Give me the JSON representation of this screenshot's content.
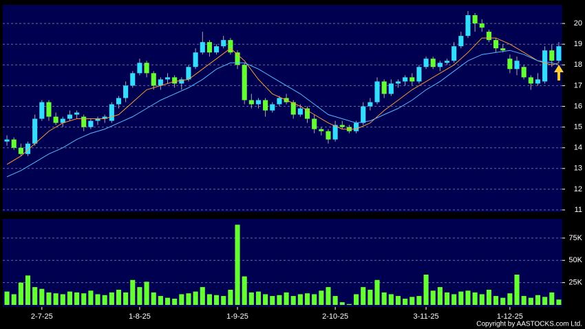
{
  "chart_data": [
    {
      "type": "candlestick",
      "up_color": "#33ddff",
      "down_color": "#66ff33",
      "wick_color": "#aaaaaa",
      "ylim": [
        10.9,
        20.9
      ],
      "yticks": [
        11,
        12,
        13,
        14,
        15,
        16,
        17,
        18,
        19,
        20
      ],
      "grid": true,
      "ohlc": [
        [
          14.3,
          14.6,
          14.1,
          14.4
        ],
        [
          14.4,
          14.5,
          13.9,
          14.0
        ],
        [
          14.0,
          14.2,
          13.6,
          13.7
        ],
        [
          13.7,
          14.3,
          13.6,
          14.2
        ],
        [
          14.2,
          15.6,
          14.1,
          15.4
        ],
        [
          15.4,
          16.3,
          15.3,
          16.2
        ],
        [
          16.2,
          16.3,
          15.3,
          15.5
        ],
        [
          15.5,
          15.7,
          15.1,
          15.2
        ],
        [
          15.2,
          15.5,
          15.0,
          15.4
        ],
        [
          15.4,
          15.8,
          15.3,
          15.6
        ],
        [
          15.6,
          15.8,
          15.4,
          15.7
        ],
        [
          15.5,
          15.6,
          14.8,
          15.0
        ],
        [
          15.0,
          15.4,
          14.9,
          15.3
        ],
        [
          15.3,
          15.5,
          15.1,
          15.4
        ],
        [
          15.4,
          15.6,
          15.2,
          15.5
        ],
        [
          15.3,
          16.2,
          15.2,
          16.1
        ],
        [
          16.1,
          16.5,
          15.9,
          16.4
        ],
        [
          16.4,
          17.2,
          16.2,
          17.0
        ],
        [
          17.0,
          17.7,
          16.9,
          17.6
        ],
        [
          17.6,
          18.3,
          17.5,
          18.1
        ],
        [
          18.1,
          18.2,
          17.4,
          17.6
        ],
        [
          17.6,
          17.7,
          16.8,
          17.0
        ],
        [
          17.0,
          17.4,
          16.8,
          17.3
        ],
        [
          17.3,
          17.6,
          17.1,
          17.4
        ],
        [
          17.4,
          17.5,
          16.9,
          17.1
        ],
        [
          17.1,
          17.4,
          16.8,
          17.3
        ],
        [
          17.3,
          18.0,
          17.2,
          17.9
        ],
        [
          17.9,
          18.8,
          17.8,
          18.6
        ],
        [
          18.6,
          19.6,
          18.5,
          19.1
        ],
        [
          19.1,
          19.2,
          18.4,
          18.6
        ],
        [
          18.6,
          19.0,
          18.5,
          18.9
        ],
        [
          18.9,
          19.4,
          18.8,
          19.2
        ],
        [
          19.2,
          19.3,
          18.5,
          18.6
        ],
        [
          18.6,
          18.7,
          17.8,
          18.0
        ],
        [
          18.0,
          18.1,
          16.1,
          16.3
        ],
        [
          16.3,
          16.6,
          15.9,
          16.1
        ],
        [
          16.1,
          16.4,
          15.9,
          16.3
        ],
        [
          16.3,
          16.4,
          15.5,
          15.8
        ],
        [
          15.8,
          16.2,
          15.7,
          16.1
        ],
        [
          16.1,
          16.5,
          16.0,
          16.4
        ],
        [
          16.4,
          16.6,
          16.1,
          16.2
        ],
        [
          16.2,
          16.3,
          15.4,
          15.6
        ],
        [
          15.6,
          16.1,
          15.5,
          15.9
        ],
        [
          15.9,
          16.0,
          15.2,
          15.4
        ],
        [
          15.4,
          15.6,
          14.7,
          14.9
        ],
        [
          14.9,
          15.0,
          14.6,
          14.8
        ],
        [
          14.8,
          14.9,
          14.2,
          14.4
        ],
        [
          14.4,
          15.3,
          14.3,
          15.1
        ],
        [
          15.1,
          15.3,
          14.9,
          15.0
        ],
        [
          15.0,
          15.1,
          14.7,
          14.8
        ],
        [
          14.8,
          15.3,
          14.7,
          15.2
        ],
        [
          15.2,
          16.2,
          15.1,
          16.0
        ],
        [
          16.0,
          16.4,
          15.8,
          16.2
        ],
        [
          16.2,
          17.4,
          16.1,
          17.2
        ],
        [
          17.2,
          17.3,
          16.4,
          16.6
        ],
        [
          16.6,
          17.3,
          16.5,
          17.1
        ],
        [
          17.1,
          17.3,
          16.9,
          17.2
        ],
        [
          17.2,
          17.5,
          17.0,
          17.4
        ],
        [
          17.4,
          17.6,
          17.0,
          17.2
        ],
        [
          17.2,
          18.0,
          17.1,
          17.9
        ],
        [
          17.9,
          18.4,
          17.8,
          18.3
        ],
        [
          18.3,
          18.4,
          17.8,
          17.9
        ],
        [
          17.9,
          18.2,
          17.7,
          18.1
        ],
        [
          18.1,
          18.3,
          18.0,
          18.2
        ],
        [
          18.2,
          19.1,
          18.1,
          18.9
        ],
        [
          18.9,
          19.6,
          18.8,
          19.4
        ],
        [
          19.4,
          20.6,
          19.3,
          20.4
        ],
        [
          20.4,
          20.5,
          19.6,
          20.0
        ],
        [
          20.0,
          20.2,
          19.6,
          19.8
        ],
        [
          19.6,
          19.7,
          19.1,
          19.2
        ],
        [
          19.2,
          19.3,
          18.6,
          18.8
        ],
        [
          18.8,
          19.0,
          18.6,
          18.7
        ],
        [
          18.3,
          18.5,
          17.6,
          17.8
        ],
        [
          17.8,
          18.4,
          17.5,
          18.2
        ],
        [
          17.9,
          18.0,
          17.3,
          17.4
        ],
        [
          17.4,
          17.5,
          16.8,
          17.1
        ],
        [
          17.1,
          17.6,
          17.0,
          17.3
        ],
        [
          17.2,
          18.9,
          17.1,
          18.7
        ],
        [
          18.7,
          19.0,
          17.9,
          18.2
        ],
        [
          18.2,
          19.1,
          18.1,
          18.9
        ]
      ],
      "lines": [
        {
          "color": "#ff9933",
          "x": [
            0,
            2,
            4,
            6,
            8,
            10,
            12,
            14,
            16,
            18,
            20,
            22,
            24,
            26,
            28,
            30,
            32,
            34,
            36,
            38,
            40,
            42,
            44,
            46,
            48,
            50,
            52,
            54,
            56,
            58,
            60,
            62,
            64,
            66,
            68,
            70,
            72,
            74,
            76,
            78,
            79
          ],
          "values": [
            13.2,
            13.6,
            14.2,
            14.8,
            15.2,
            15.4,
            15.4,
            15.4,
            15.6,
            16.2,
            16.8,
            17.0,
            17.2,
            17.3,
            17.8,
            18.3,
            18.8,
            18.2,
            17.3,
            16.6,
            16.3,
            16.0,
            15.6,
            15.2,
            14.9,
            14.9,
            15.2,
            15.8,
            16.3,
            16.8,
            17.2,
            17.6,
            18.0,
            18.6,
            19.3,
            19.3,
            19.0,
            18.6,
            18.2,
            18.0,
            18.1
          ]
        },
        {
          "color": "#55bbff",
          "x": [
            0,
            2,
            4,
            6,
            8,
            10,
            12,
            14,
            16,
            18,
            20,
            22,
            24,
            26,
            28,
            30,
            32,
            34,
            36,
            38,
            40,
            42,
            44,
            46,
            48,
            50,
            52,
            54,
            56,
            58,
            60,
            62,
            64,
            66,
            68,
            70,
            72,
            74,
            76,
            78,
            79
          ],
          "values": [
            12.6,
            12.9,
            13.3,
            13.7,
            14.0,
            14.4,
            14.7,
            14.9,
            15.2,
            15.5,
            15.9,
            16.3,
            16.6,
            16.9,
            17.3,
            17.8,
            18.1,
            18.1,
            17.8,
            17.4,
            17.0,
            16.6,
            16.1,
            15.6,
            15.4,
            15.2,
            15.3,
            15.6,
            15.9,
            16.3,
            16.8,
            17.2,
            17.7,
            18.2,
            18.5,
            18.6,
            18.7,
            18.5,
            18.2,
            18.1,
            18.0
          ]
        }
      ]
    },
    {
      "type": "bar",
      "color": "#66ff33",
      "ylim": [
        0,
        95000
      ],
      "yticks": [
        {
          "value": 25000,
          "label": "25K"
        },
        {
          "value": 50000,
          "label": "50K"
        },
        {
          "value": 75000,
          "label": "75K"
        }
      ],
      "grid": true,
      "categories": [
        null,
        null,
        null,
        null,
        null,
        "2-7-25",
        null,
        null,
        null,
        null,
        null,
        null,
        null,
        null,
        null,
        null,
        null,
        null,
        null,
        "1-8-25",
        null,
        null,
        null,
        null,
        null,
        null,
        null,
        null,
        null,
        null,
        null,
        null,
        null,
        "1-9-25",
        null,
        null,
        null,
        null,
        null,
        null,
        null,
        null,
        null,
        null,
        null,
        null,
        null,
        "2-10-25",
        null,
        null,
        null,
        null,
        null,
        null,
        null,
        null,
        null,
        null,
        null,
        null,
        "3-11-25",
        null,
        null,
        null,
        null,
        null,
        null,
        null,
        null,
        null,
        null,
        null,
        "1-12-25",
        null,
        null,
        null,
        null,
        null,
        null,
        null
      ],
      "values": [
        15000,
        12000,
        25000,
        33000,
        20000,
        18000,
        14000,
        13000,
        12000,
        15000,
        14000,
        13000,
        16000,
        12000,
        11000,
        14000,
        17000,
        14000,
        28000,
        20000,
        26000,
        14000,
        10000,
        8000,
        7000,
        12000,
        13000,
        15000,
        20000,
        12000,
        11000,
        10000,
        17000,
        90000,
        32000,
        14000,
        15000,
        12000,
        10000,
        11000,
        14000,
        10000,
        12000,
        13000,
        12000,
        16000,
        20000,
        10000,
        3000,
        1000,
        12000,
        20000,
        17000,
        28000,
        14000,
        12000,
        10000,
        7000,
        9000,
        10000,
        34000,
        16000,
        20000,
        14000,
        12000,
        15000,
        16000,
        14000,
        12000,
        17000,
        10000,
        8000,
        13000,
        34000,
        10000,
        8000,
        11000,
        9000,
        14000,
        6000
      ]
    }
  ],
  "copyright": "Copyright by AASTOCKS.com Ltd."
}
